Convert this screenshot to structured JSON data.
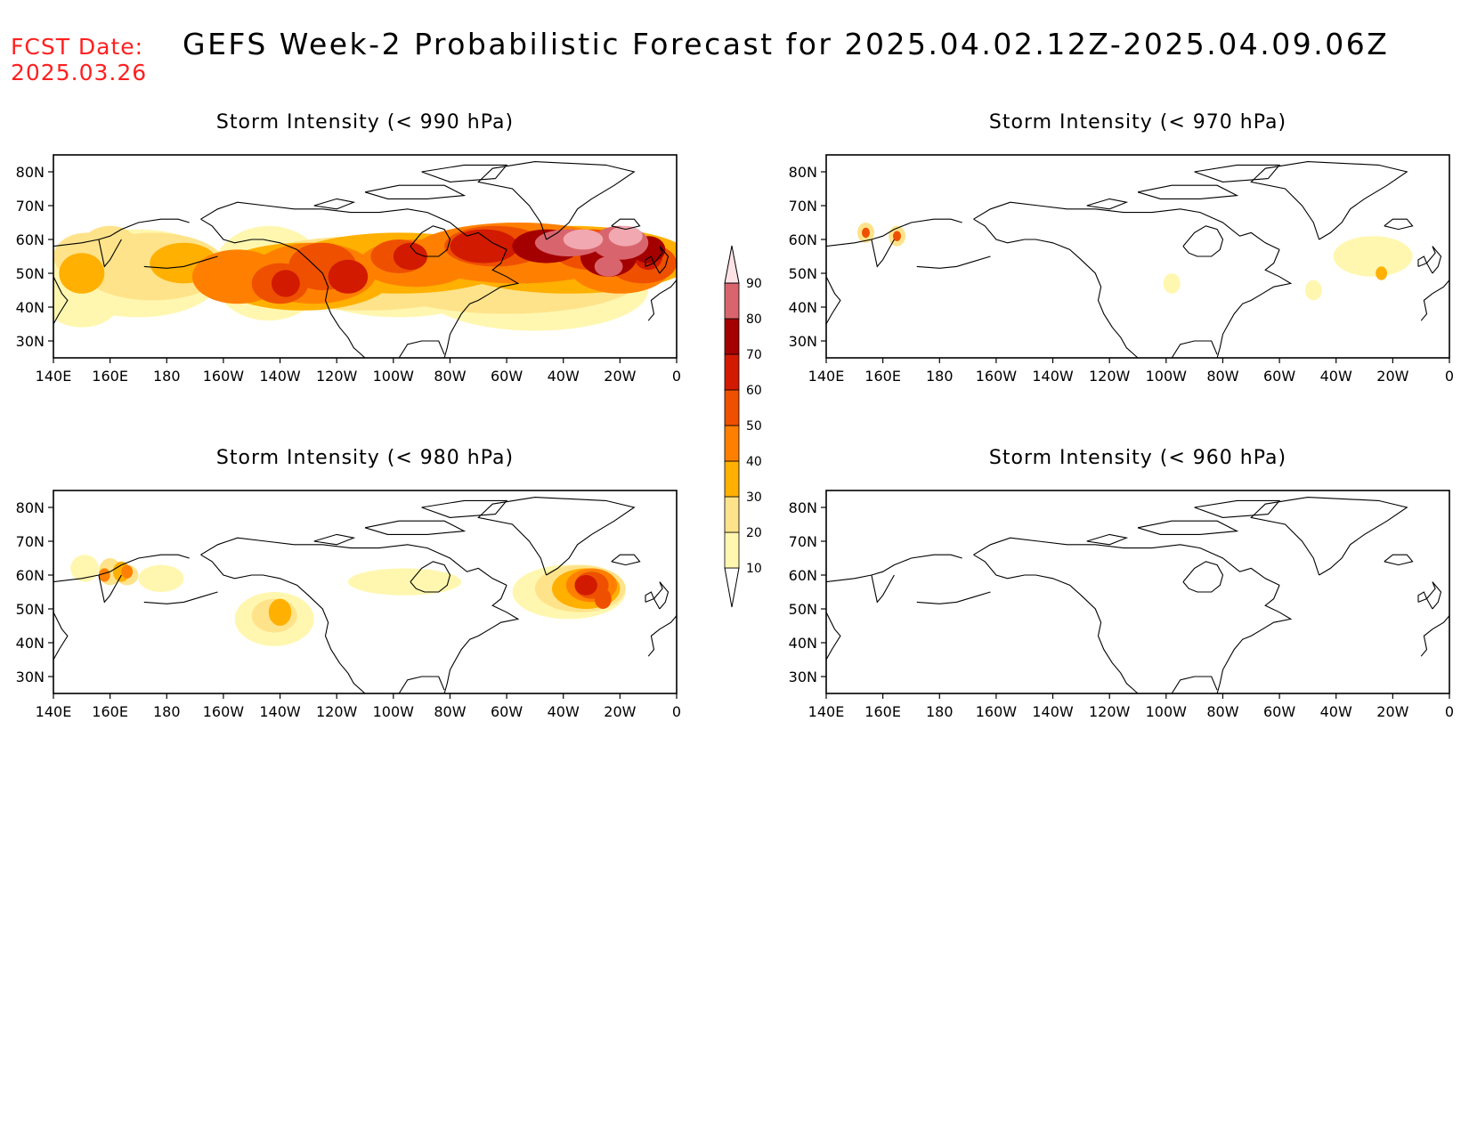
{
  "header": {
    "fcst_label": "FCST Date:",
    "fcst_date": "2025.03.26",
    "title": "GEFS Week-2 Probabilistic Forecast for 2025.04.02.12Z-2025.04.09.06Z"
  },
  "axes": {
    "lon_ticks": [
      "140E",
      "160E",
      "180",
      "160W",
      "140W",
      "120W",
      "100W",
      "80W",
      "60W",
      "40W",
      "20W",
      "0"
    ],
    "lat_ticks": [
      "80N",
      "70N",
      "60N",
      "50N",
      "40N",
      "30N"
    ],
    "lat_range": [
      25,
      85
    ],
    "lon_range": [
      "140E",
      "0"
    ]
  },
  "colorbar": {
    "levels": [
      10,
      20,
      30,
      40,
      50,
      60,
      70,
      80,
      90
    ],
    "colors": [
      "#fff7b0",
      "#ffe38a",
      "#ffb000",
      "#ff8000",
      "#ee5000",
      "#d21a00",
      "#a50000",
      "#d8656e",
      "#f2a8b0",
      "#fde2e6"
    ]
  },
  "panels": [
    {
      "title": "Storm Intensity (< 990 hPa)",
      "position": "top-left"
    },
    {
      "title": "Storm Intensity (< 970 hPa)",
      "position": "top-right"
    },
    {
      "title": "Storm Intensity (< 980 hPa)",
      "position": "bottom-left"
    },
    {
      "title": "Storm Intensity (< 960 hPa)",
      "position": "bottom-right"
    }
  ],
  "colors": {
    "fcst_label": "#ff2020",
    "frame": "#000000",
    "coast": "#000000"
  }
}
